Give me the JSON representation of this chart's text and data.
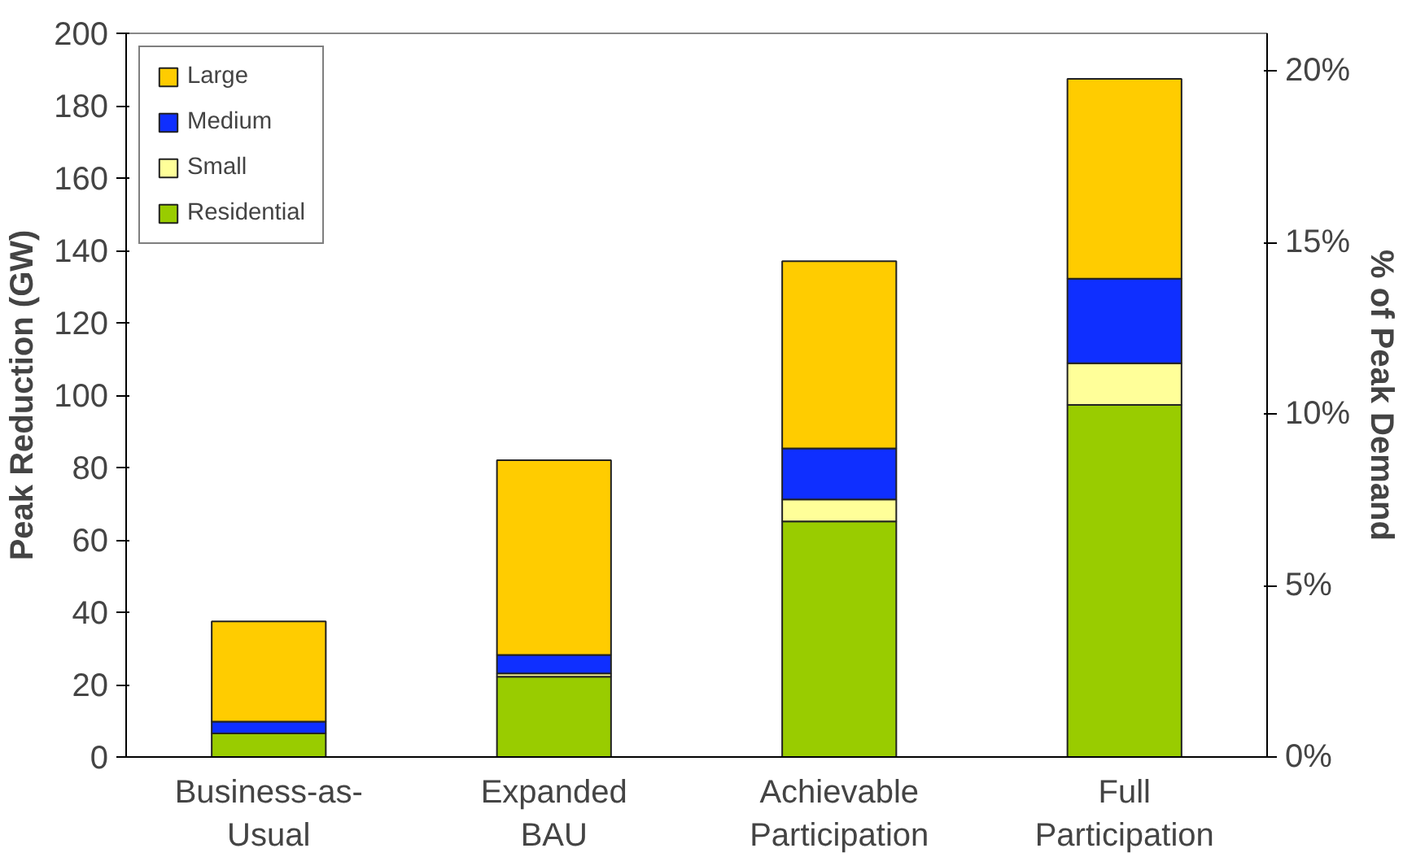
{
  "chart_data": {
    "type": "bar",
    "stacked": true,
    "ylabel": "Peak Reduction (GW)",
    "y2label": "% of Peak Demand",
    "categories": [
      "Business-as-Usual",
      "Expanded BAU",
      "Achievable Participation",
      "Full Participation"
    ],
    "series": [
      {
        "name": "Residential",
        "color": "#99cc00",
        "values": [
          6.5,
          22.2,
          65.1,
          97.3
        ]
      },
      {
        "name": "Small",
        "color": "#ffff99",
        "values": [
          0,
          0.9,
          6.1,
          11.5
        ]
      },
      {
        "name": "Medium",
        "color": "#0f2fff",
        "values": [
          3.3,
          5.1,
          14.1,
          23.4
        ]
      },
      {
        "name": "Large",
        "color": "#ffcc00",
        "values": [
          27.7,
          53.8,
          51.7,
          55.2
        ]
      }
    ],
    "ylim": [
      0,
      200
    ],
    "yticks": [
      0,
      20,
      40,
      60,
      80,
      100,
      120,
      140,
      160,
      180,
      200
    ],
    "y2lim": [
      0,
      21.1
    ],
    "y2ticks": [
      {
        "value": 0,
        "label": "0%"
      },
      {
        "value": 5,
        "label": "5%"
      },
      {
        "value": 10,
        "label": "10%"
      },
      {
        "value": 15,
        "label": "15%"
      },
      {
        "value": 20,
        "label": "20%"
      }
    ],
    "legend": "top left",
    "grid": false
  }
}
